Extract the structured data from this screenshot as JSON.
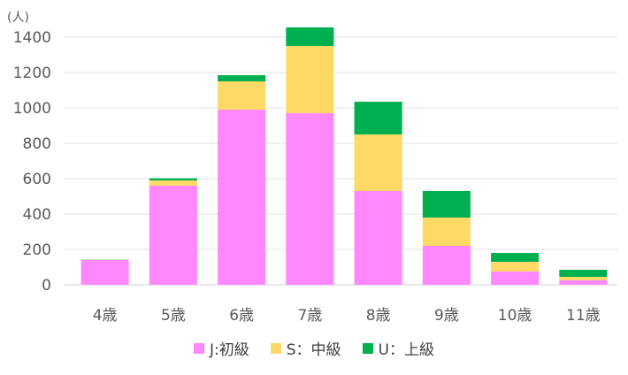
{
  "chart_data": {
    "type": "bar",
    "stacked": true,
    "unit_label": "(人)",
    "categories": [
      "4歳",
      "5歳",
      "6歳",
      "7歳",
      "8歳",
      "9歳",
      "10歳",
      "11歳"
    ],
    "series": [
      {
        "name": "J:初級",
        "color": "#FF88FF",
        "values": [
          140,
          560,
          990,
          970,
          530,
          220,
          75,
          25
        ]
      },
      {
        "name": "S：中級",
        "color": "#FFD966",
        "values": [
          2,
          30,
          160,
          380,
          320,
          160,
          55,
          20
        ]
      },
      {
        "name": "U：上級",
        "color": "#00B050",
        "values": [
          1,
          12,
          35,
          105,
          185,
          150,
          50,
          40
        ]
      }
    ],
    "ylim": [
      0,
      1400
    ],
    "yticks": [
      0,
      200,
      400,
      600,
      800,
      1000,
      1200,
      1400
    ],
    "grid": true,
    "legend_position": "bottom"
  }
}
